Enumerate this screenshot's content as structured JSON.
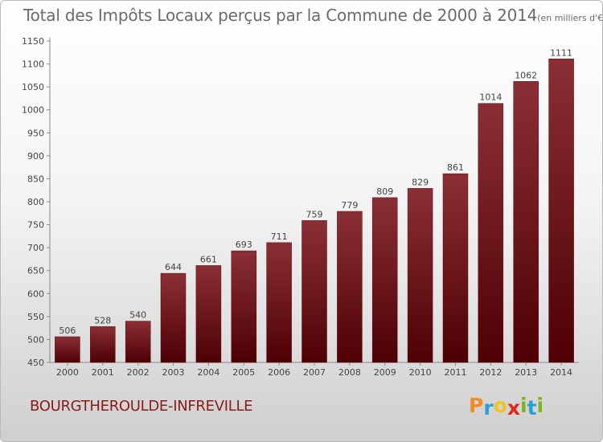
{
  "chart_data": {
    "type": "bar",
    "title": "Total des Impôts Locaux perçus par la Commune de 2000 à 2014",
    "subtitle": "(en milliers d'€)",
    "xlabel": "",
    "ylabel": "",
    "categories": [
      "2000",
      "2001",
      "2002",
      "2003",
      "2004",
      "2005",
      "2006",
      "2007",
      "2008",
      "2009",
      "2010",
      "2011",
      "2012",
      "2013",
      "2014"
    ],
    "values": [
      506,
      528,
      540,
      644,
      661,
      693,
      711,
      759,
      779,
      809,
      829,
      861,
      1014,
      1062,
      1111
    ],
    "ylim": [
      450,
      1150
    ],
    "yticks": [
      450,
      500,
      550,
      600,
      650,
      700,
      750,
      800,
      850,
      900,
      950,
      1000,
      1050,
      1100,
      1150
    ],
    "grid": false,
    "bar_color_top": "#8b2f35",
    "bar_color_bottom": "#4d0004"
  },
  "commune_name": "BOURGTHEROULDE-INFREVILLE",
  "brand": {
    "letters": [
      "P",
      "r",
      "o",
      "x",
      "i",
      "t",
      "i"
    ],
    "colors": [
      "#f28c1e",
      "#2a9fd8",
      "#f2c21e",
      "#e2261c",
      "#7cb51d",
      "#2a9fd8",
      "#7cb51d"
    ]
  }
}
